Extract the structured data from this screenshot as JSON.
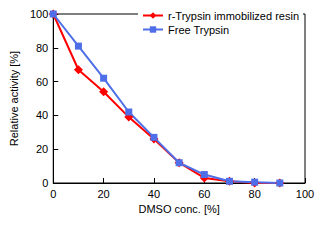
{
  "chart_data": {
    "type": "line",
    "x_label": "DMSO conc. [%]",
    "y_label": "Relative activity [%]",
    "x": [
      0,
      10,
      20,
      30,
      40,
      50,
      60,
      70,
      80,
      90
    ],
    "series": [
      {
        "name": "r-Trypsin immobilized resin",
        "color": "#ff0000",
        "marker": "diamond",
        "line_style": "solid",
        "values": [
          100,
          67,
          54,
          39,
          26,
          12,
          3,
          1,
          0,
          0
        ]
      },
      {
        "name": "Free Trypsin",
        "color": "#4f6fe8",
        "marker": "square",
        "line_style": "solid",
        "values": [
          100,
          81,
          62,
          42,
          27,
          12,
          5,
          1,
          0.5,
          0
        ]
      }
    ],
    "xlim": [
      0,
      100
    ],
    "xticks": [
      0,
      20,
      40,
      60,
      80,
      100
    ],
    "ylim": [
      0,
      100
    ],
    "yticks": [
      0,
      20,
      40,
      60,
      80,
      100
    ],
    "grid": false,
    "legend": "top-right"
  }
}
